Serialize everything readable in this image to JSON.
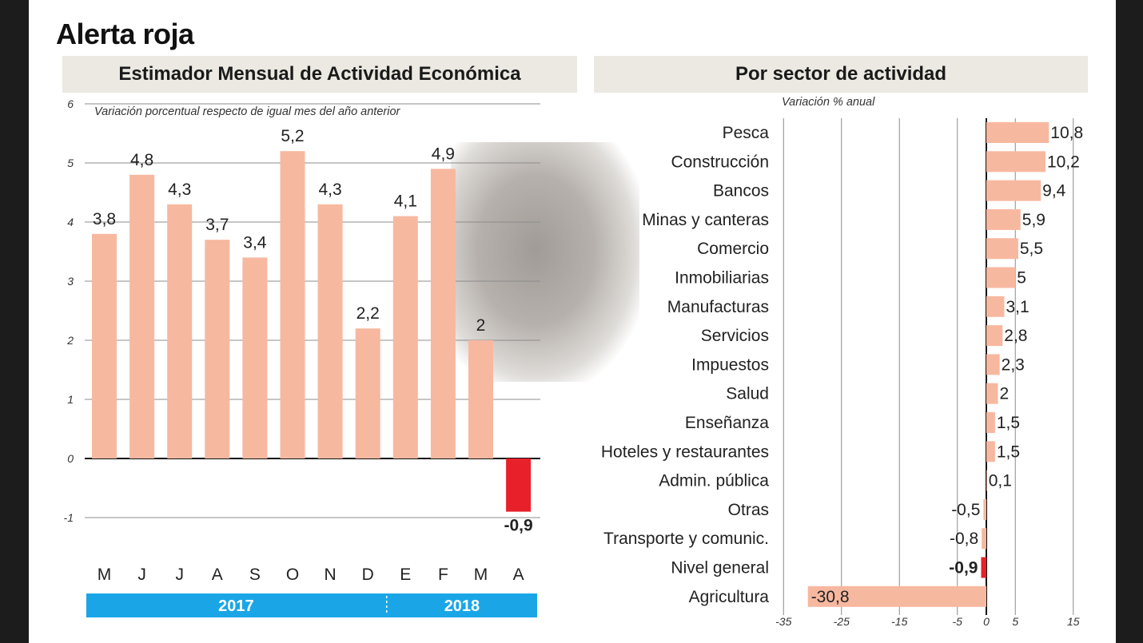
{
  "title": "Alerta roja",
  "colors": {
    "bar": "#f7b8a0",
    "highlight": "#e8202a",
    "year_band": "#1aa6e6",
    "header_bg": "#ebe9e1"
  },
  "left_chart": {
    "header": "Estimador Mensual de Actividad Económica",
    "subtitle": "Variación porcentual respecto de igual mes del año anterior",
    "years": [
      "2017",
      "2018"
    ]
  },
  "right_chart": {
    "header": "Por sector de actividad",
    "subtitle": "Variación % anual"
  },
  "chart_data": [
    {
      "type": "bar",
      "title": "Estimador Mensual de Actividad Económica",
      "subtitle": "Variación porcentual respecto de igual mes del año anterior",
      "categories": [
        "M",
        "J",
        "J",
        "A",
        "S",
        "O",
        "N",
        "D",
        "E",
        "F",
        "M",
        "A"
      ],
      "values": [
        3.8,
        4.8,
        4.3,
        3.7,
        3.4,
        5.2,
        4.3,
        2.2,
        4.1,
        4.9,
        2,
        -0.9
      ],
      "value_labels": [
        "3,8",
        "4,8",
        "4,3",
        "3,7",
        "3,4",
        "5,2",
        "4,3",
        "2,2",
        "4,1",
        "4,9",
        "2",
        "-0,9"
      ],
      "highlight_index": 11,
      "ylim": [
        -1,
        6
      ],
      "yticks": [
        -1,
        0,
        1,
        2,
        3,
        4,
        5,
        6
      ],
      "ytick_labels": [
        "-1",
        "0",
        "1",
        "2",
        "3",
        "4",
        "5",
        "6"
      ],
      "year_groups": [
        {
          "label": "2017",
          "from": 0,
          "to": 7
        },
        {
          "label": "2018",
          "from": 8,
          "to": 11
        }
      ],
      "grid": true
    },
    {
      "type": "bar",
      "orientation": "horizontal",
      "title": "Por sector de actividad",
      "subtitle": "Variación % anual",
      "categories": [
        "Pesca",
        "Construcción",
        "Bancos",
        "Minas y canteras",
        "Comercio",
        "Inmobiliarias",
        "Manufacturas",
        "Servicios",
        "Impuestos",
        "Salud",
        "Enseñanza",
        "Hoteles y restaurantes",
        "Admin. pública",
        "Otras",
        "Transporte y comunic.",
        "Nivel general",
        "Agricultura"
      ],
      "values": [
        10.8,
        10.2,
        9.4,
        5.9,
        5.5,
        5,
        3.1,
        2.8,
        2.3,
        2,
        1.5,
        1.5,
        0.1,
        -0.5,
        -0.8,
        -0.9,
        -30.8
      ],
      "value_labels": [
        "10,8",
        "10,2",
        "9,4",
        "5,9",
        "5,5",
        "5",
        "3,1",
        "2,8",
        "2,3",
        "2",
        "1,5",
        "1,5",
        "0,1",
        "-0,5",
        "-0,8",
        "-0,9",
        "-30,8"
      ],
      "highlight_index": 15,
      "xlim": [
        -35,
        15
      ],
      "xticks": [
        -35,
        -25,
        -15,
        -5,
        0,
        5,
        15
      ],
      "xtick_labels": [
        "-35",
        "-25",
        "-15",
        "-5",
        "0",
        "5",
        "15"
      ],
      "grid": true
    }
  ]
}
